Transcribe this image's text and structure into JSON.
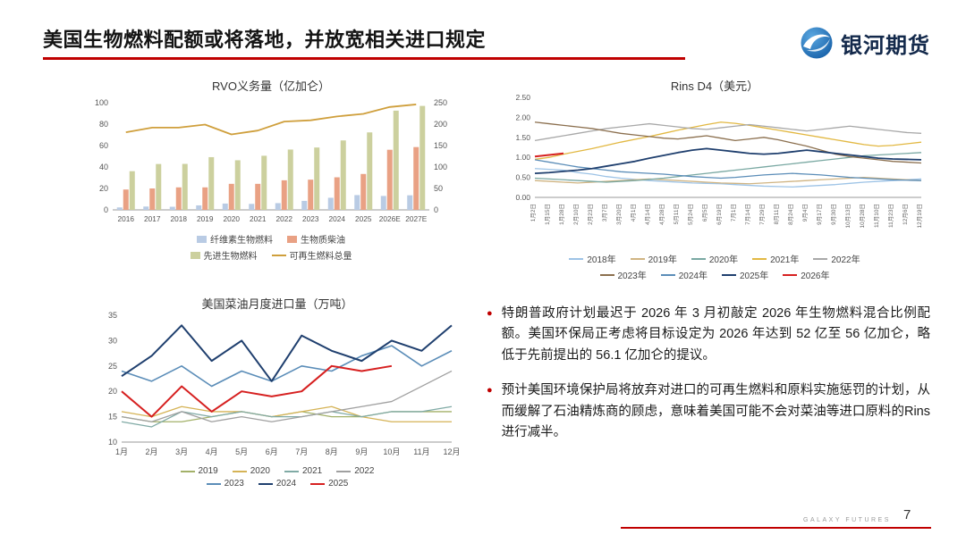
{
  "page": {
    "title": "美国生物燃料配额或将落地，并放宽相关进口规定",
    "logo_text": "银河期货",
    "footer_brand": "GALAXY FUTURES",
    "page_number": "7",
    "accent_color": "#c00000",
    "bullet_marker": "●"
  },
  "bullets": [
    {
      "text": "特朗普政府计划最迟于 2026 年 3 月初敲定 2026 年生物燃料混合比例配额。美国环保局正考虑将目标设定为 2026 年达到 52 亿至 56 亿加仑，略低于先前提出的 56.1 亿加仑的提议。"
    },
    {
      "text": "预计美国环境保护局将放弃对进口的可再生燃料和原料实施惩罚的计划，从而缓解了石油精炼商的顾虑，意味着美国可能不会对菜油等进口原料的Rins进行减半。"
    }
  ],
  "chart_data": [
    {
      "id": "rvo",
      "type": "bar",
      "title": "RVO义务量（亿加仑）",
      "categories": [
        "2016",
        "2017",
        "2018",
        "2019",
        "2020",
        "2021",
        "2022",
        "2023",
        "2024",
        "2025",
        "2026E",
        "2027E"
      ],
      "bar_series": [
        {
          "name": "纤维素生物燃料",
          "color": "#b9cbe4",
          "values": [
            2.3,
            3.1,
            2.9,
            4.2,
            5.9,
            5.6,
            6.3,
            8.4,
            11.3,
            13.8,
            13.0,
            13.6
          ]
        },
        {
          "name": "生物质柴油",
          "color": "#e9a184",
          "values": [
            19.0,
            20.0,
            21.0,
            21.0,
            24.3,
            24.3,
            27.6,
            28.2,
            30.4,
            33.5,
            56.1,
            58.6
          ]
        },
        {
          "name": "先进生物燃料",
          "color": "#ccd09e",
          "values": [
            36.1,
            42.8,
            42.9,
            49.2,
            46.3,
            50.5,
            56.3,
            58.2,
            64.8,
            72.3,
            92.6,
            97.0
          ]
        }
      ],
      "line_series": [
        {
          "name": "可再生燃料总量",
          "color": "#cf9f3c",
          "axis": "right",
          "values": [
            181,
            192,
            192,
            199,
            176,
            185,
            206,
            209,
            218,
            224,
            240,
            246
          ]
        }
      ],
      "left_axis": {
        "min": 0,
        "max": 100,
        "step": 20
      },
      "right_axis": {
        "min": 0,
        "max": 250,
        "step": 50
      },
      "legend_rows": [
        2,
        2
      ],
      "legend_position": "bottom"
    },
    {
      "id": "rins",
      "type": "line",
      "title": "Rins D4（美元）",
      "x_labels": [
        "1月2日",
        "1月15日",
        "1月28日",
        "2月10日",
        "2月23日",
        "3月7日",
        "3月20日",
        "4月1日",
        "4月14日",
        "4月28日",
        "5月11日",
        "5月24日",
        "6月5日",
        "6月19日",
        "7月1日",
        "7月14日",
        "7月29日",
        "8月11日",
        "8月24日",
        "9月4日",
        "9月17日",
        "9月30日",
        "10月13日",
        "10月28日",
        "11月10日",
        "11月23日",
        "12月6日",
        "12月19日"
      ],
      "y_axis": {
        "min": 0,
        "max": 2.5,
        "step": 0.5,
        "decimals": 2
      },
      "series": [
        {
          "name": "2018年",
          "color": "#9dc3e6",
          "values": [
            0.72,
            0.7,
            0.68,
            0.62,
            0.58,
            0.52,
            0.48,
            0.45,
            0.42,
            0.4,
            0.38,
            0.36,
            0.35,
            0.34,
            0.32,
            0.3,
            0.28,
            0.27,
            0.26,
            0.28,
            0.3,
            0.32,
            0.35,
            0.38,
            0.4,
            0.42,
            0.44,
            0.46
          ]
        },
        {
          "name": "2019年",
          "color": "#d0b482",
          "values": [
            0.42,
            0.4,
            0.38,
            0.36,
            0.38,
            0.4,
            0.42,
            0.44,
            0.46,
            0.44,
            0.42,
            0.4,
            0.38,
            0.36,
            0.35,
            0.34,
            0.36,
            0.38,
            0.4,
            0.42,
            0.44,
            0.46,
            0.48,
            0.5,
            0.48,
            0.46,
            0.44,
            0.42
          ]
        },
        {
          "name": "2020年",
          "color": "#79a8a2",
          "values": [
            0.48,
            0.46,
            0.44,
            0.42,
            0.4,
            0.38,
            0.4,
            0.42,
            0.45,
            0.48,
            0.52,
            0.56,
            0.6,
            0.64,
            0.68,
            0.72,
            0.76,
            0.8,
            0.84,
            0.88,
            0.92,
            0.96,
            1.0,
            1.04,
            1.06,
            1.08,
            1.1,
            1.12
          ]
        },
        {
          "name": "2021年",
          "color": "#e2b842",
          "values": [
            0.95,
            1.0,
            1.08,
            1.15,
            1.22,
            1.3,
            1.38,
            1.45,
            1.52,
            1.6,
            1.68,
            1.75,
            1.82,
            1.88,
            1.85,
            1.8,
            1.74,
            1.68,
            1.62,
            1.56,
            1.5,
            1.44,
            1.38,
            1.32,
            1.28,
            1.3,
            1.34,
            1.38
          ]
        },
        {
          "name": "2022年",
          "color": "#a8a8a8",
          "values": [
            1.42,
            1.48,
            1.54,
            1.6,
            1.66,
            1.72,
            1.76,
            1.8,
            1.84,
            1.8,
            1.76,
            1.72,
            1.7,
            1.74,
            1.78,
            1.82,
            1.78,
            1.74,
            1.7,
            1.66,
            1.7,
            1.74,
            1.78,
            1.74,
            1.7,
            1.66,
            1.62,
            1.6
          ]
        },
        {
          "name": "2023年",
          "color": "#8b6f4e",
          "values": [
            1.88,
            1.84,
            1.8,
            1.76,
            1.72,
            1.66,
            1.6,
            1.56,
            1.52,
            1.48,
            1.46,
            1.5,
            1.54,
            1.48,
            1.42,
            1.46,
            1.5,
            1.44,
            1.36,
            1.28,
            1.18,
            1.08,
            1.02,
            0.98,
            0.94,
            0.9,
            0.88,
            0.86
          ]
        },
        {
          "name": "2024年",
          "color": "#5b8db8",
          "values": [
            0.94,
            0.88,
            0.82,
            0.76,
            0.72,
            0.68,
            0.64,
            0.62,
            0.6,
            0.58,
            0.55,
            0.52,
            0.5,
            0.48,
            0.5,
            0.53,
            0.56,
            0.58,
            0.6,
            0.58,
            0.56,
            0.53,
            0.5,
            0.48,
            0.46,
            0.44,
            0.43,
            0.42
          ]
        },
        {
          "name": "2025年",
          "color": "#1f3f6e",
          "width": 1.8,
          "values": [
            0.6,
            0.62,
            0.65,
            0.68,
            0.72,
            0.78,
            0.84,
            0.9,
            0.98,
            1.05,
            1.12,
            1.18,
            1.22,
            1.18,
            1.14,
            1.1,
            1.08,
            1.1,
            1.14,
            1.18,
            1.14,
            1.1,
            1.06,
            1.02,
            0.98,
            0.96,
            0.95,
            0.94
          ]
        },
        {
          "name": "2026年",
          "color": "#d62020",
          "width": 2,
          "values": [
            1.02,
            1.06,
            1.1
          ]
        }
      ],
      "legend_rows": [
        5,
        4
      ],
      "legend_position": "bottom"
    },
    {
      "id": "rapeseed-oil-imports",
      "type": "line",
      "title": "美国菜油月度进口量（万吨）",
      "x_labels": [
        "1月",
        "2月",
        "3月",
        "4月",
        "5月",
        "6月",
        "7月",
        "8月",
        "9月",
        "10月",
        "11月",
        "12月"
      ],
      "y_axis": {
        "min": 10,
        "max": 35,
        "step": 5,
        "decimals": 0
      },
      "series": [
        {
          "name": "2019",
          "color": "#a3b169",
          "values": [
            15,
            14,
            14,
            15,
            16,
            15,
            16,
            15,
            15,
            16,
            16,
            16
          ]
        },
        {
          "name": "2020",
          "color": "#d5b356",
          "values": [
            16,
            15,
            17,
            16,
            16,
            15,
            16,
            17,
            15,
            14,
            14,
            14
          ]
        },
        {
          "name": "2021",
          "color": "#80aaa5",
          "values": [
            14,
            13,
            16,
            15,
            16,
            15,
            15,
            16,
            15,
            16,
            16,
            17
          ]
        },
        {
          "name": "2022",
          "color": "#a0a0a0",
          "values": [
            15,
            14,
            16,
            14,
            15,
            14,
            15,
            16,
            17,
            18,
            21,
            24
          ]
        },
        {
          "name": "2023",
          "color": "#5b8db8",
          "width": 1.6,
          "values": [
            24,
            22,
            25,
            21,
            24,
            22,
            25,
            24,
            27,
            29,
            25,
            28
          ]
        },
        {
          "name": "2024",
          "color": "#1f3f6e",
          "width": 2,
          "values": [
            23,
            27,
            33,
            26,
            30,
            22,
            31,
            28,
            26,
            30,
            28,
            33
          ]
        },
        {
          "name": "2025",
          "color": "#d62020",
          "width": 2,
          "values": [
            20,
            15,
            21,
            16,
            20,
            19,
            20,
            25,
            24,
            25
          ]
        }
      ],
      "legend_rows": [
        4,
        3
      ],
      "legend_position": "bottom"
    }
  ]
}
